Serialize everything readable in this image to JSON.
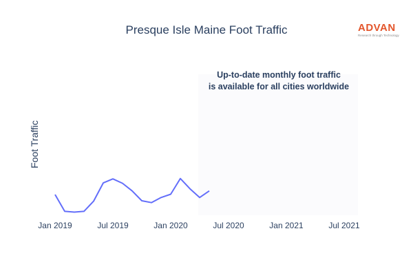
{
  "chart_data": {
    "type": "line",
    "title": "Presque Isle Maine Foot Traffic",
    "ylabel": "Foot Traffic",
    "xlabel": "",
    "x_ticks": [
      "Jan 2019",
      "Jul 2019",
      "Jan 2020",
      "Jul 2020",
      "Jan 2021",
      "Jul 2021"
    ],
    "x": [
      "2019-01",
      "2019-02",
      "2019-03",
      "2019-04",
      "2019-05",
      "2019-06",
      "2019-07",
      "2019-08",
      "2019-09",
      "2019-10",
      "2019-11",
      "2019-12",
      "2020-01",
      "2020-02",
      "2020-03",
      "2020-04",
      "2020-05"
    ],
    "series": [
      {
        "values": [
          49,
          3,
          1,
          3,
          31,
          81,
          92,
          80,
          59,
          32,
          27,
          41,
          50,
          93,
          65,
          41,
          59
        ],
        "color": "#636efa"
      }
    ],
    "xlim": [
      "2019-01",
      "2021-07"
    ],
    "ylim": [
      0,
      100
    ],
    "grid": false,
    "legend": "none"
  },
  "brand": {
    "name": "ADVAN",
    "tagline": "Research through Technology",
    "color": "#e3552b"
  },
  "promo": {
    "line1": "Up-to-date monthly foot traffic",
    "line2": "is available for all cities worldwide"
  }
}
